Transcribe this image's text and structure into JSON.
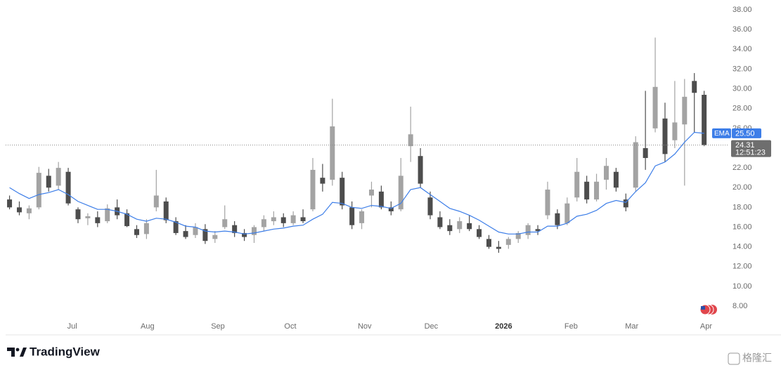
{
  "chart_data": {
    "type": "candlestick",
    "x": [
      0.4,
      1.4,
      2.4,
      3.4,
      4.4,
      5.4,
      6.4,
      7.4,
      8.4,
      9.4,
      10.4,
      11.4,
      12.4,
      13.4,
      14.4,
      15.4,
      16.4,
      17.4,
      18.4,
      19.4,
      20.4,
      21.4,
      22.4,
      23.4,
      24.4,
      25.4,
      26.4,
      27.4,
      28.4,
      29.4,
      30.4,
      31.4,
      32.4,
      33.4,
      34.4,
      35.4,
      36.4,
      37.4,
      38.4,
      39.4,
      40.4,
      41.4,
      42.4,
      43.4,
      44.4,
      45.4,
      46.4,
      47.4,
      48.4,
      49.4,
      50.4,
      51.4,
      52.4,
      53.4,
      54.4,
      55.4,
      56.4,
      57.4,
      58.4,
      59.4,
      60.4,
      61.4,
      62.4,
      63.4,
      64.4,
      65.4,
      66.4,
      67.4,
      68.4,
      69.4,
      70.4,
      71.4
    ],
    "open": [
      18.8,
      18.0,
      17.4,
      18.0,
      21.2,
      20.2,
      21.6,
      17.8,
      16.9,
      17.0,
      16.6,
      18.0,
      17.4,
      15.8,
      15.3,
      18.0,
      18.6,
      16.6,
      15.6,
      15.2,
      15.8,
      14.8,
      16.0,
      16.2,
      15.4,
      15.2,
      16.0,
      16.6,
      17.0,
      16.4,
      17.0,
      17.8,
      21.0,
      20.8,
      21.0,
      18.0,
      16.4,
      19.2,
      19.6,
      18.0,
      17.8,
      24.2,
      23.2,
      19.0,
      17.0,
      16.2,
      15.8,
      16.4,
      15.8,
      14.8,
      14.0,
      14.2,
      14.8,
      15.2,
      15.8,
      17.2,
      17.4,
      16.4,
      19.0,
      20.6,
      18.8,
      20.8,
      21.6,
      18.8,
      20.0,
      24.0,
      26.0,
      27.0,
      24.8,
      26.4,
      30.8,
      29.4
    ],
    "high": [
      19.2,
      18.6,
      18.2,
      22.1,
      21.9,
      22.6,
      22.0,
      18.0,
      17.4,
      17.6,
      18.3,
      18.8,
      17.8,
      16.2,
      16.8,
      21.8,
      19.0,
      17.0,
      16.2,
      16.4,
      16.3,
      15.6,
      18.2,
      16.6,
      15.8,
      16.2,
      17.2,
      17.6,
      17.4,
      17.6,
      17.8,
      23.0,
      22.4,
      29.0,
      21.6,
      18.6,
      17.8,
      20.6,
      20.2,
      18.6,
      23.0,
      28.2,
      24.0,
      19.6,
      17.6,
      16.8,
      17.0,
      17.2,
      16.2,
      15.2,
      14.6,
      15.0,
      15.6,
      16.4,
      16.2,
      20.6,
      17.8,
      19.0,
      23.0,
      21.2,
      21.4,
      23.0,
      22.0,
      19.4,
      25.2,
      29.8,
      35.2,
      28.6,
      30.8,
      31.0,
      31.6,
      29.8
    ],
    "low": [
      17.8,
      17.2,
      16.8,
      17.8,
      19.6,
      19.8,
      18.2,
      16.4,
      16.2,
      16.0,
      16.4,
      16.8,
      16.0,
      14.9,
      14.8,
      17.6,
      16.4,
      15.2,
      14.8,
      14.9,
      14.3,
      14.4,
      15.8,
      15.0,
      14.6,
      14.4,
      15.6,
      16.2,
      16.0,
      16.2,
      16.4,
      17.6,
      19.6,
      20.2,
      17.8,
      15.8,
      15.8,
      18.0,
      17.8,
      17.2,
      17.6,
      22.6,
      20.0,
      16.8,
      15.8,
      15.2,
      15.4,
      15.6,
      14.8,
      13.8,
      13.4,
      13.8,
      14.4,
      14.8,
      15.2,
      16.8,
      15.8,
      16.2,
      18.6,
      18.4,
      18.6,
      19.8,
      19.6,
      17.6,
      19.6,
      21.8,
      25.6,
      22.6,
      24.0,
      20.2,
      25.6,
      24.2
    ],
    "close": [
      18.0,
      17.5,
      17.9,
      21.5,
      20.0,
      22.0,
      18.4,
      16.8,
      17.1,
      16.4,
      17.9,
      17.2,
      16.1,
      15.2,
      16.4,
      19.2,
      16.7,
      15.4,
      15.0,
      16.0,
      14.6,
      15.2,
      16.8,
      15.4,
      15.0,
      16.0,
      16.8,
      17.0,
      16.4,
      17.2,
      16.6,
      21.8,
      20.4,
      26.2,
      18.2,
      16.2,
      17.6,
      19.8,
      18.0,
      17.6,
      21.2,
      25.4,
      20.4,
      17.2,
      16.0,
      15.6,
      16.6,
      15.8,
      15.0,
      14.0,
      13.8,
      14.8,
      15.4,
      16.2,
      15.6,
      19.8,
      16.2,
      18.4,
      21.6,
      18.8,
      20.6,
      22.2,
      20.0,
      18.0,
      24.6,
      23.0,
      30.2,
      23.4,
      26.6,
      29.2,
      29.6,
      24.31
    ],
    "up_color": "#a3a3a3",
    "down_color": "#4d4d4d",
    "ema": {
      "label": "EMA",
      "color": "#3d7ee8",
      "values": [
        20.0,
        19.4,
        18.9,
        19.3,
        19.5,
        19.8,
        19.3,
        18.6,
        18.2,
        17.8,
        17.8,
        17.6,
        17.3,
        16.8,
        16.6,
        16.9,
        16.8,
        16.5,
        16.1,
        16.0,
        15.6,
        15.5,
        15.6,
        15.5,
        15.3,
        15.4,
        15.6,
        15.8,
        15.9,
        16.1,
        16.2,
        16.8,
        17.3,
        18.5,
        18.4,
        18.0,
        17.9,
        18.2,
        18.1,
        17.9,
        18.4,
        19.8,
        20.0,
        19.3,
        18.6,
        17.9,
        17.6,
        17.2,
        16.7,
        16.1,
        15.5,
        15.3,
        15.3,
        15.5,
        15.5,
        16.1,
        16.1,
        16.4,
        17.1,
        17.3,
        17.7,
        18.4,
        18.7,
        18.5,
        19.6,
        20.5,
        22.2,
        22.6,
        23.4,
        24.6,
        25.6,
        25.5
      ],
      "last": {
        "value": 25.5,
        "label": "25.50"
      }
    },
    "last_price": 24.31,
    "countdown": "12:51:23",
    "xlim": [
      0,
      72
    ],
    "xticks": [
      {
        "value": 6.8,
        "label": "Jul"
      },
      {
        "value": 14.5,
        "label": "Aug"
      },
      {
        "value": 21.7,
        "label": "Sep"
      },
      {
        "value": 29.1,
        "label": "Oct"
      },
      {
        "value": 36.7,
        "label": "Nov"
      },
      {
        "value": 43.5,
        "label": "Dec"
      },
      {
        "value": 50.9,
        "label": "2026"
      },
      {
        "value": 57.8,
        "label": "Feb"
      },
      {
        "value": 64.0,
        "label": "Mar"
      },
      {
        "value": 71.6,
        "label": "Apr"
      }
    ],
    "ylim": [
      6.65,
      39
    ],
    "yticks": [
      {
        "value": 8,
        "label": "8.00"
      },
      {
        "value": 10,
        "label": "10.00"
      },
      {
        "value": 12,
        "label": "12.00"
      },
      {
        "value": 14,
        "label": "14.00"
      },
      {
        "value": 16,
        "label": "16.00"
      },
      {
        "value": 18,
        "label": "18.00"
      },
      {
        "value": 20,
        "label": "20.00"
      },
      {
        "value": 22,
        "label": "22.00"
      },
      {
        "value": 24,
        "label": "24.00"
      },
      {
        "value": 26,
        "label": "26.00"
      },
      {
        "value": 28,
        "label": "28.00"
      },
      {
        "value": 30,
        "label": "30.00"
      },
      {
        "value": 32,
        "label": "32.00"
      },
      {
        "value": 34,
        "label": "34.00"
      },
      {
        "value": 36,
        "label": "36.00"
      },
      {
        "value": 38,
        "label": "38.00"
      }
    ],
    "brand": "TradingView",
    "watermark": "格隆汇"
  }
}
